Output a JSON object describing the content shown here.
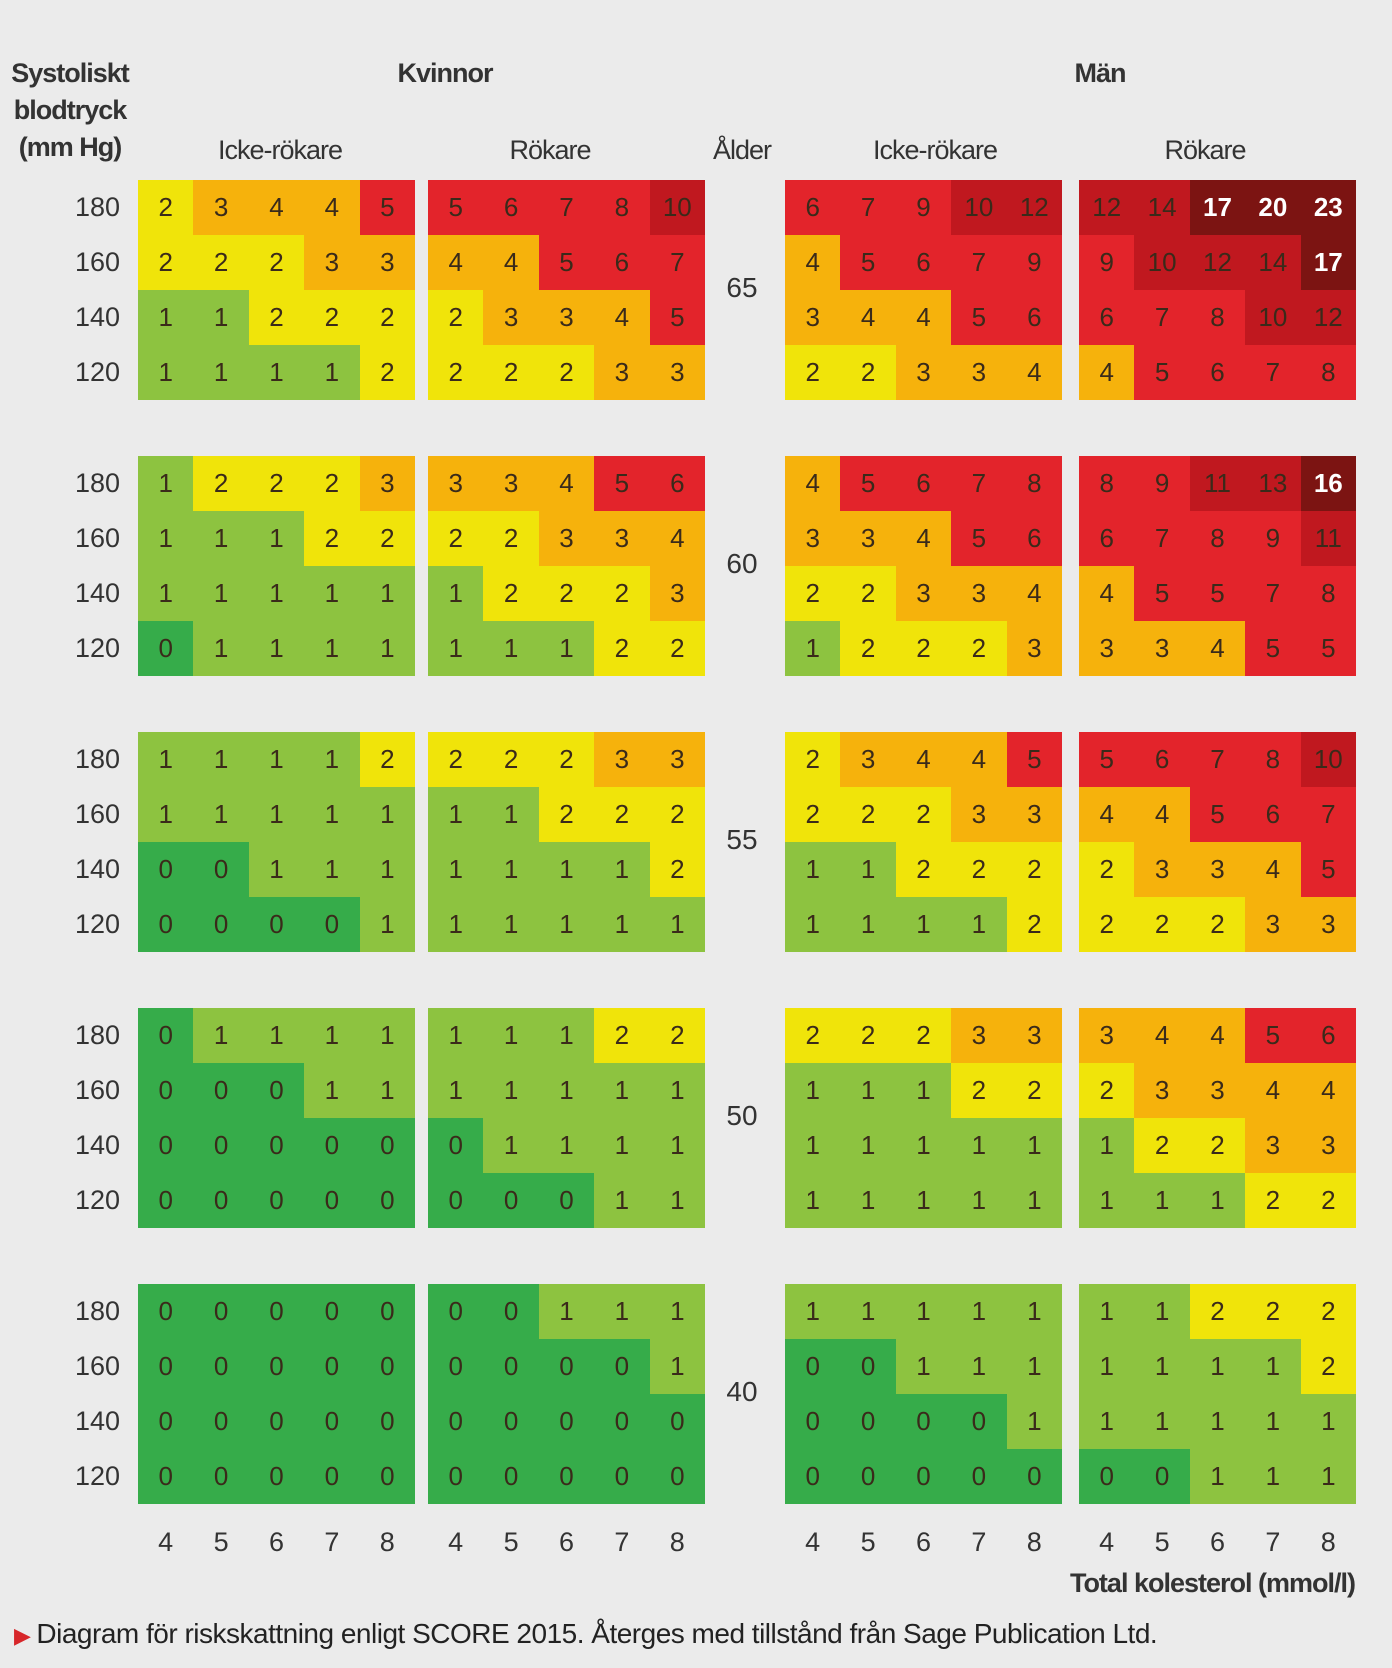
{
  "chart_data": {
    "type": "heatmap",
    "ylabel": "Systoliskt blodtryck (mm Hg)",
    "xlabel": "Total kolesterol (mmol/l)",
    "age_label": "Ålder",
    "groups": [
      "Kvinnor",
      "Män"
    ],
    "subgroups": [
      "Icke-rökare",
      "Rökare"
    ],
    "cholesterol": [
      "4",
      "5",
      "6",
      "7",
      "8"
    ],
    "systolic": [
      "180",
      "160",
      "140",
      "120"
    ],
    "ages": [
      "65",
      "60",
      "55",
      "50",
      "40"
    ],
    "values": {
      "65": {
        "kvinnor_icke": [
          [
            2,
            3,
            4,
            4,
            5
          ],
          [
            2,
            2,
            2,
            3,
            3
          ],
          [
            1,
            1,
            2,
            2,
            2
          ],
          [
            1,
            1,
            1,
            1,
            2
          ]
        ],
        "kvinnor_rok": [
          [
            5,
            6,
            7,
            8,
            10
          ],
          [
            4,
            4,
            5,
            6,
            7
          ],
          [
            2,
            3,
            3,
            4,
            5
          ],
          [
            2,
            2,
            2,
            3,
            3
          ]
        ],
        "man_icke": [
          [
            6,
            7,
            9,
            10,
            12
          ],
          [
            4,
            5,
            6,
            7,
            9
          ],
          [
            3,
            4,
            4,
            5,
            6
          ],
          [
            2,
            2,
            3,
            3,
            4
          ]
        ],
        "man_rok": [
          [
            12,
            14,
            17,
            20,
            23
          ],
          [
            9,
            10,
            12,
            14,
            17
          ],
          [
            6,
            7,
            8,
            10,
            12
          ],
          [
            4,
            5,
            6,
            7,
            8
          ]
        ]
      },
      "60": {
        "kvinnor_icke": [
          [
            1,
            2,
            2,
            2,
            3
          ],
          [
            1,
            1,
            1,
            2,
            2
          ],
          [
            1,
            1,
            1,
            1,
            1
          ],
          [
            0,
            1,
            1,
            1,
            1
          ]
        ],
        "kvinnor_rok": [
          [
            3,
            3,
            4,
            5,
            6
          ],
          [
            2,
            2,
            3,
            3,
            4
          ],
          [
            1,
            2,
            2,
            2,
            3
          ],
          [
            1,
            1,
            1,
            2,
            2
          ]
        ],
        "man_icke": [
          [
            4,
            5,
            6,
            7,
            8
          ],
          [
            3,
            3,
            4,
            5,
            6
          ],
          [
            2,
            2,
            3,
            3,
            4
          ],
          [
            1,
            2,
            2,
            2,
            3
          ]
        ],
        "man_rok": [
          [
            8,
            9,
            11,
            13,
            16
          ],
          [
            6,
            7,
            8,
            9,
            11
          ],
          [
            4,
            5,
            5,
            7,
            8
          ],
          [
            3,
            3,
            4,
            5,
            5
          ]
        ]
      },
      "55": {
        "kvinnor_icke": [
          [
            1,
            1,
            1,
            1,
            2
          ],
          [
            1,
            1,
            1,
            1,
            1
          ],
          [
            0,
            0,
            1,
            1,
            1
          ],
          [
            0,
            0,
            0,
            0,
            1
          ]
        ],
        "kvinnor_rok": [
          [
            2,
            2,
            2,
            3,
            3
          ],
          [
            1,
            1,
            2,
            2,
            2
          ],
          [
            1,
            1,
            1,
            1,
            2
          ],
          [
            1,
            1,
            1,
            1,
            1
          ]
        ],
        "man_icke": [
          [
            2,
            3,
            4,
            4,
            5
          ],
          [
            2,
            2,
            2,
            3,
            3
          ],
          [
            1,
            1,
            2,
            2,
            2
          ],
          [
            1,
            1,
            1,
            1,
            2
          ]
        ],
        "man_rok": [
          [
            5,
            6,
            7,
            8,
            10
          ],
          [
            4,
            4,
            5,
            6,
            7
          ],
          [
            2,
            3,
            3,
            4,
            5
          ],
          [
            2,
            2,
            2,
            3,
            3
          ]
        ]
      },
      "50": {
        "kvinnor_icke": [
          [
            0,
            1,
            1,
            1,
            1
          ],
          [
            0,
            0,
            0,
            1,
            1
          ],
          [
            0,
            0,
            0,
            0,
            0
          ],
          [
            0,
            0,
            0,
            0,
            0
          ]
        ],
        "kvinnor_rok": [
          [
            1,
            1,
            1,
            2,
            2
          ],
          [
            1,
            1,
            1,
            1,
            1
          ],
          [
            0,
            1,
            1,
            1,
            1
          ],
          [
            0,
            0,
            0,
            1,
            1
          ]
        ],
        "man_icke": [
          [
            2,
            2,
            2,
            3,
            3
          ],
          [
            1,
            1,
            1,
            2,
            2
          ],
          [
            1,
            1,
            1,
            1,
            1
          ],
          [
            1,
            1,
            1,
            1,
            1
          ]
        ],
        "man_rok": [
          [
            3,
            4,
            4,
            5,
            6
          ],
          [
            2,
            3,
            3,
            4,
            4
          ],
          [
            1,
            2,
            2,
            3,
            3
          ],
          [
            1,
            1,
            1,
            2,
            2
          ]
        ]
      },
      "40": {
        "kvinnor_icke": [
          [
            0,
            0,
            0,
            0,
            0
          ],
          [
            0,
            0,
            0,
            0,
            0
          ],
          [
            0,
            0,
            0,
            0,
            0
          ],
          [
            0,
            0,
            0,
            0,
            0
          ]
        ],
        "kvinnor_rok": [
          [
            0,
            0,
            1,
            1,
            1
          ],
          [
            0,
            0,
            0,
            0,
            1
          ],
          [
            0,
            0,
            0,
            0,
            0
          ],
          [
            0,
            0,
            0,
            0,
            0
          ]
        ],
        "man_icke": [
          [
            1,
            1,
            1,
            1,
            1
          ],
          [
            0,
            0,
            1,
            1,
            1
          ],
          [
            0,
            0,
            0,
            0,
            1
          ],
          [
            0,
            0,
            0,
            0,
            0
          ]
        ],
        "man_rok": [
          [
            1,
            1,
            2,
            2,
            2
          ],
          [
            1,
            1,
            1,
            1,
            2
          ],
          [
            1,
            1,
            1,
            1,
            1
          ],
          [
            0,
            0,
            1,
            1,
            1
          ]
        ]
      }
    },
    "color_scale": {
      "0": "#36ac4a",
      "1": "#8dc340",
      "2": "#f0e40a",
      "3-4": "#f6b20c",
      "5-9": "#e3242b",
      "10-14": "#c0181f",
      "15+": "#7c1412"
    }
  },
  "footer": "Diagram för riskskattning enligt SCORE 2015. Återges med tillstånd från Sage Publication Ltd."
}
